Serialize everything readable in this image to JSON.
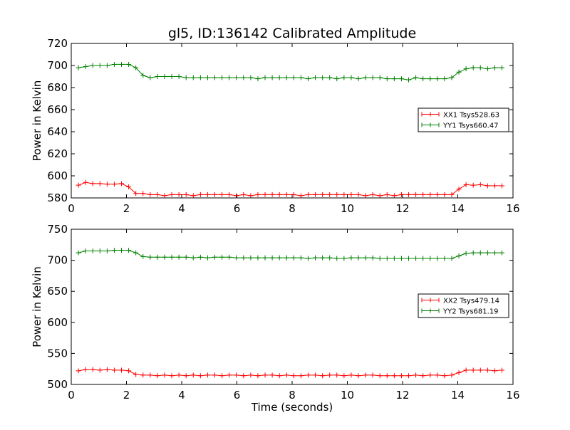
{
  "title": "gl5, ID:136142 Calibrated Amplitude",
  "chart_data": [
    {
      "type": "line",
      "title": "gl5, ID:136142 Calibrated Amplitude",
      "xlabel": "",
      "ylabel": "Power in Kelvin",
      "xlim": [
        0,
        16
      ],
      "ylim": [
        580,
        720
      ],
      "xticks": [
        "0",
        "2",
        "4",
        "6",
        "8",
        "10",
        "12",
        "14",
        "16"
      ],
      "yticks": [
        "580",
        "600",
        "620",
        "640",
        "660",
        "680",
        "700",
        "720"
      ],
      "legend_position": "center-right",
      "x": [
        0.26,
        0.52,
        0.78,
        1.04,
        1.3,
        1.56,
        1.82,
        2.08,
        2.34,
        2.6,
        2.86,
        3.12,
        3.38,
        3.64,
        3.9,
        4.16,
        4.42,
        4.68,
        4.94,
        5.2,
        5.46,
        5.72,
        5.98,
        6.24,
        6.5,
        6.76,
        7.02,
        7.28,
        7.54,
        7.8,
        8.06,
        8.32,
        8.58,
        8.84,
        9.1,
        9.36,
        9.62,
        9.88,
        10.14,
        10.4,
        10.66,
        10.92,
        11.18,
        11.44,
        11.7,
        11.96,
        12.22,
        12.48,
        12.74,
        13.0,
        13.26,
        13.52,
        13.78,
        14.04,
        14.3,
        14.56,
        14.82,
        15.08,
        15.34,
        15.6
      ],
      "series": [
        {
          "name": "XX1 Tsys528.63",
          "color": "#ff0000",
          "values": [
            591.5,
            594,
            593,
            593,
            592.5,
            592.5,
            593,
            590,
            584,
            584,
            583,
            583,
            582,
            583,
            583,
            583,
            582,
            583,
            583,
            583,
            583,
            583,
            582,
            583,
            582,
            583,
            583,
            583,
            583,
            583,
            583,
            582,
            583,
            583,
            583,
            583,
            583,
            583,
            583,
            583,
            582,
            583,
            582,
            583,
            582,
            583,
            583,
            583,
            583,
            583,
            583,
            583,
            583,
            588,
            592,
            591.5,
            592,
            591,
            591,
            591
          ]
        },
        {
          "name": "YY1 Tsys660.47",
          "color": "#008000",
          "values": [
            698,
            699,
            700,
            700,
            700,
            701,
            701,
            701,
            698,
            691,
            689,
            690,
            690,
            690,
            690,
            689,
            689,
            689,
            689,
            689,
            689,
            689,
            689,
            689,
            689,
            688,
            689,
            689,
            689,
            689,
            689,
            689,
            688,
            689,
            689,
            689,
            688,
            689,
            689,
            688,
            689,
            689,
            689,
            688,
            688,
            688,
            687,
            689,
            688,
            688,
            688,
            688,
            689,
            694,
            697,
            698,
            698,
            697,
            698,
            698
          ]
        }
      ]
    },
    {
      "type": "line",
      "title": "",
      "xlabel": "Time (seconds)",
      "ylabel": "Power in Kelvin",
      "xlim": [
        0,
        16
      ],
      "ylim": [
        500,
        750
      ],
      "xticks": [
        "0",
        "2",
        "4",
        "6",
        "8",
        "10",
        "12",
        "14",
        "16"
      ],
      "yticks": [
        "500",
        "550",
        "600",
        "650",
        "700",
        "750"
      ],
      "legend_position": "center-right",
      "x": [
        0.26,
        0.52,
        0.78,
        1.04,
        1.3,
        1.56,
        1.82,
        2.08,
        2.34,
        2.6,
        2.86,
        3.12,
        3.38,
        3.64,
        3.9,
        4.16,
        4.42,
        4.68,
        4.94,
        5.2,
        5.46,
        5.72,
        5.98,
        6.24,
        6.5,
        6.76,
        7.02,
        7.28,
        7.54,
        7.8,
        8.06,
        8.32,
        8.58,
        8.84,
        9.1,
        9.36,
        9.62,
        9.88,
        10.14,
        10.4,
        10.66,
        10.92,
        11.18,
        11.44,
        11.7,
        11.96,
        12.22,
        12.48,
        12.74,
        13.0,
        13.26,
        13.52,
        13.78,
        14.04,
        14.3,
        14.56,
        14.82,
        15.08,
        15.34,
        15.6
      ],
      "series": [
        {
          "name": "XX2 Tsys479.14",
          "color": "#ff0000",
          "values": [
            522,
            524,
            524,
            523,
            524,
            523,
            523,
            522,
            516,
            515,
            515,
            514,
            515,
            514,
            515,
            514,
            515,
            514,
            515,
            515,
            514,
            515,
            515,
            514,
            515,
            514,
            515,
            515,
            514,
            515,
            514,
            514,
            515,
            515,
            514,
            515,
            515,
            514,
            515,
            514,
            515,
            515,
            514,
            514,
            514,
            514,
            514,
            515,
            514,
            515,
            515,
            514,
            515,
            519,
            523,
            523,
            523,
            523,
            522,
            523
          ]
        },
        {
          "name": "YY2 Tsys681.19",
          "color": "#008000",
          "values": [
            712,
            715,
            715,
            715,
            715,
            716,
            716,
            716,
            712,
            706,
            705,
            705,
            705,
            705,
            705,
            705,
            704,
            705,
            704,
            705,
            705,
            705,
            704,
            704,
            704,
            704,
            704,
            704,
            704,
            704,
            704,
            704,
            703,
            704,
            704,
            704,
            703,
            703,
            704,
            704,
            704,
            704,
            703,
            703,
            703,
            703,
            703,
            703,
            703,
            703,
            703,
            703,
            703,
            707,
            711,
            712,
            712,
            712,
            712,
            712
          ]
        }
      ]
    }
  ]
}
